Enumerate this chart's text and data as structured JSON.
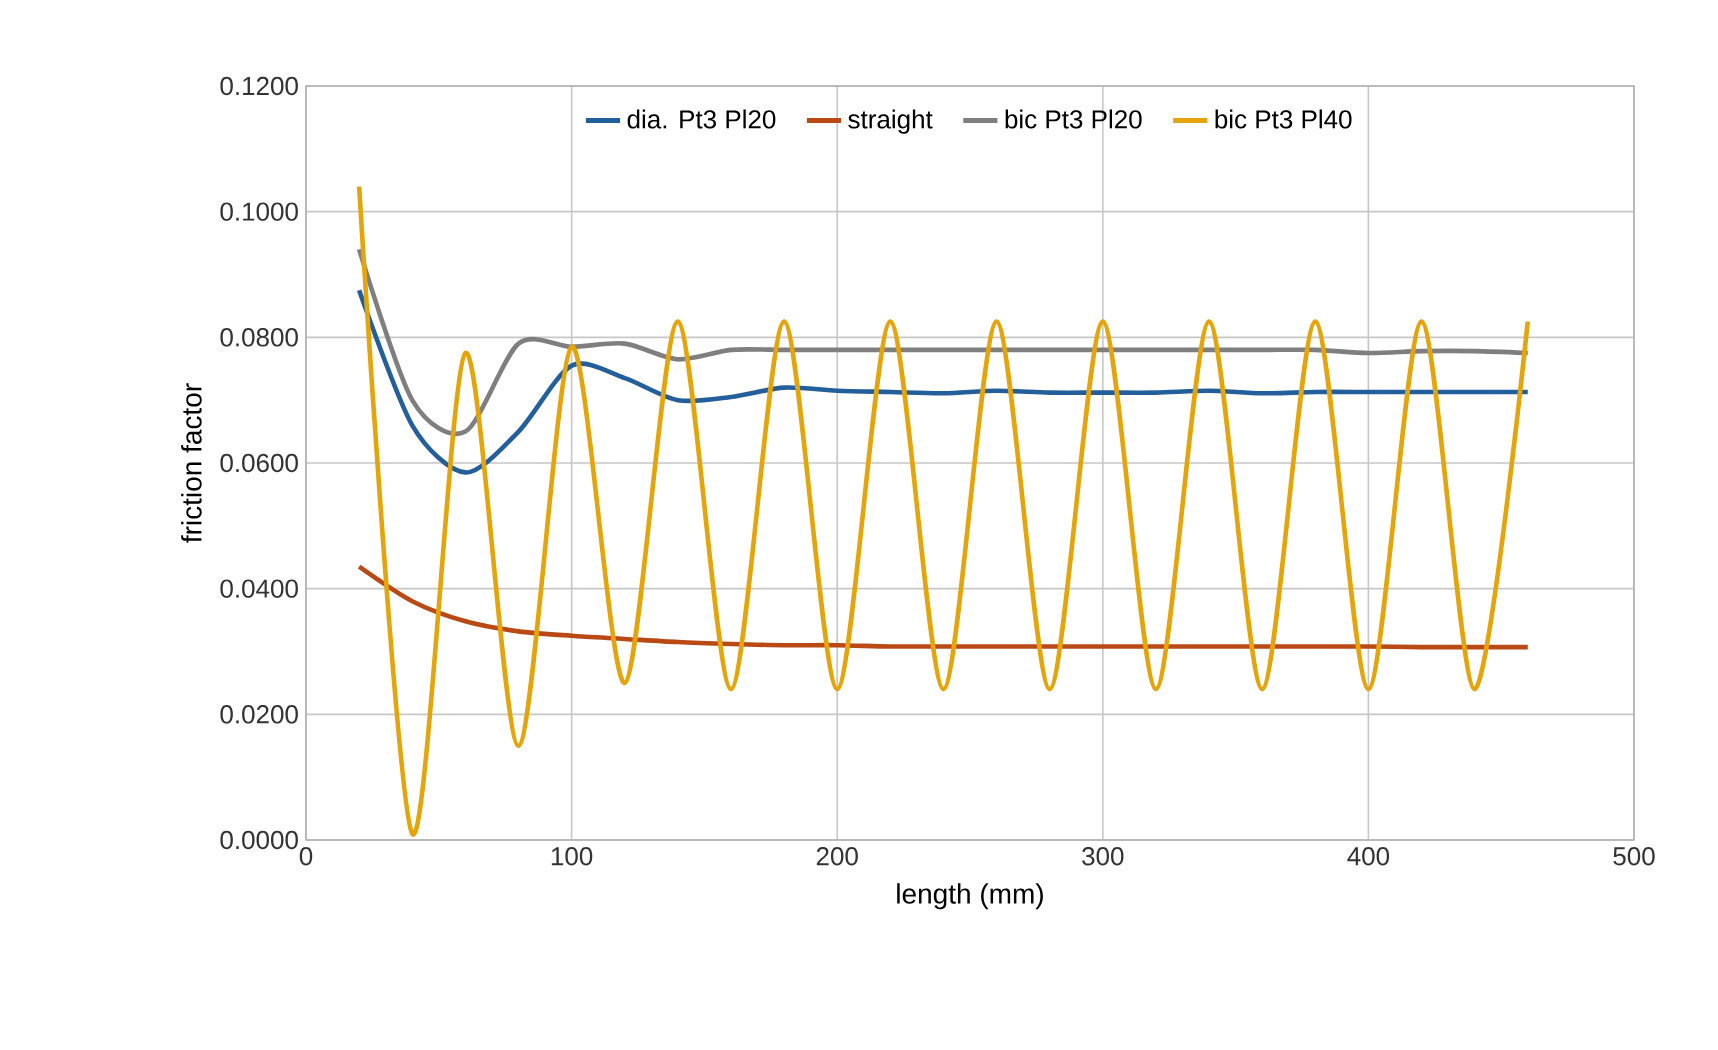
{
  "chart_data": {
    "type": "line",
    "xlabel": "length (mm)",
    "ylabel": "friction factor",
    "x": [
      20,
      40,
      60,
      80,
      100,
      120,
      140,
      160,
      180,
      200,
      220,
      240,
      260,
      280,
      300,
      320,
      340,
      360,
      380,
      400,
      420,
      440,
      460
    ],
    "series": [
      {
        "name": "dia. Pt3 Pl20",
        "color": "#235f9a",
        "values": [
          0.0875,
          0.066,
          0.0585,
          0.065,
          0.0755,
          0.0735,
          0.07,
          0.0705,
          0.072,
          0.0715,
          0.0713,
          0.0711,
          0.0715,
          0.0712,
          0.0712,
          0.0712,
          0.0715,
          0.0711,
          0.0713,
          0.0713,
          0.0713,
          0.0713,
          0.0713
        ]
      },
      {
        "name": "straight",
        "color": "#b94a16",
        "values": [
          0.0435,
          0.038,
          0.0348,
          0.0332,
          0.0325,
          0.032,
          0.0315,
          0.0312,
          0.031,
          0.031,
          0.0308,
          0.0308,
          0.0308,
          0.0308,
          0.0308,
          0.0308,
          0.0308,
          0.0308,
          0.0308,
          0.0308,
          0.0307,
          0.0307,
          0.0307
        ]
      },
      {
        "name": "bic Pt3 Pl20",
        "color": "#7f7f7f",
        "values": [
          0.094,
          0.07,
          0.065,
          0.079,
          0.0785,
          0.079,
          0.0765,
          0.078,
          0.078,
          0.078,
          0.078,
          0.078,
          0.078,
          0.078,
          0.078,
          0.078,
          0.078,
          0.078,
          0.078,
          0.0775,
          0.0778,
          0.0778,
          0.0775
        ]
      },
      {
        "name": "bic Pt3 Pl40",
        "color": "#e5a50a",
        "values": [
          0.104,
          0.001,
          0.0775,
          0.015,
          0.0785,
          0.025,
          0.0825,
          0.024,
          0.0825,
          0.024,
          0.0825,
          0.024,
          0.0825,
          0.024,
          0.0825,
          0.024,
          0.0825,
          0.024,
          0.0825,
          0.024,
          0.0825,
          0.024,
          0.0825
        ]
      }
    ],
    "xlim": [
      0,
      500
    ],
    "xticks": [
      0,
      100,
      200,
      300,
      400,
      500
    ],
    "ylim": [
      0,
      0.12
    ],
    "yticks": [
      {
        "value": 0,
        "label": "0.0000"
      },
      {
        "value": 0.02,
        "label": "0.0200"
      },
      {
        "value": 0.04,
        "label": "0.0400"
      },
      {
        "value": 0.06,
        "label": "0.0600"
      },
      {
        "value": 0.08,
        "label": "0.0800"
      },
      {
        "value": 0.1,
        "label": "0.1000"
      },
      {
        "value": 0.12,
        "label": "0.1200"
      }
    ],
    "grid": true,
    "legend": "top",
    "marker": "none",
    "line_style": "solid"
  }
}
